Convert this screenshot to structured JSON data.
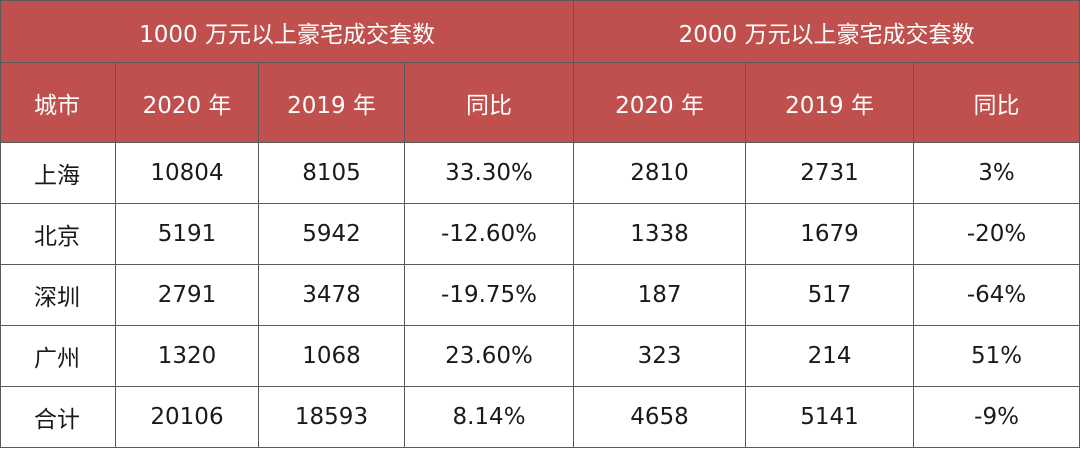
{
  "table": {
    "group_headers": [
      "1000 万元以上豪宅成交套数",
      "2000 万元以上豪宅成交套数"
    ],
    "column_headers": [
      "城市",
      "2020 年",
      "2019 年",
      "同比",
      "2020 年",
      "2019 年",
      "同比"
    ],
    "rows": [
      [
        "上海",
        "10804",
        "8105",
        "33.30%",
        "2810",
        "2731",
        "3%"
      ],
      [
        "北京",
        "5191",
        "5942",
        "-12.60%",
        "1338",
        "1679",
        "-20%"
      ],
      [
        "深圳",
        "2791",
        "3478",
        "-19.75%",
        "187",
        "517",
        "-64%"
      ],
      [
        "广州",
        "1320",
        "1068",
        "23.60%",
        "323",
        "214",
        "51%"
      ],
      [
        "合计",
        "20106",
        "18593",
        "8.14%",
        "4658",
        "5141",
        "-9%"
      ]
    ]
  },
  "colors": {
    "header_background": "#c0504d",
    "header_text": "#ffffff",
    "border": "#5a5a5a"
  }
}
